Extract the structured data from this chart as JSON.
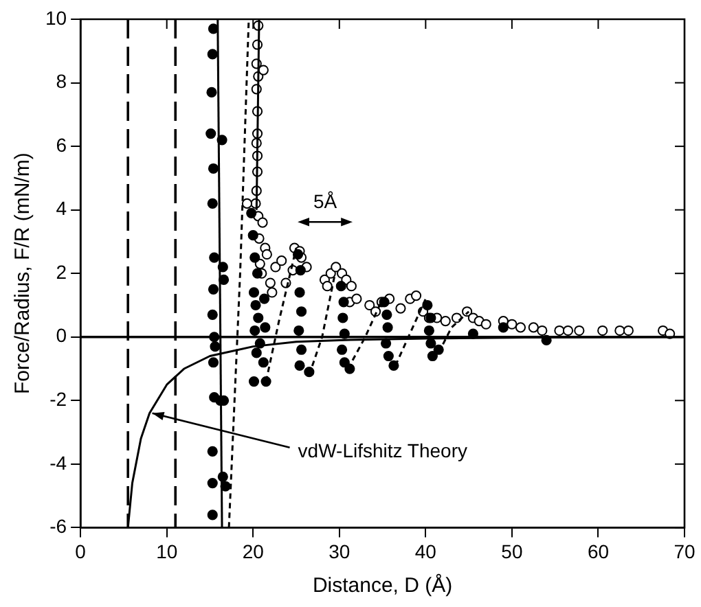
{
  "chart_data": {
    "type": "scatter",
    "xlabel": "Distance, D (Å)",
    "ylabel": "Force/Radius, F/R (mN/m)",
    "xlim": [
      0,
      70
    ],
    "xticks": [
      0,
      10,
      20,
      30,
      40,
      50,
      60,
      70
    ],
    "ylim": [
      -6,
      10
    ],
    "yticks": [
      -6,
      -4,
      -2,
      0,
      2,
      4,
      6,
      8,
      10
    ],
    "grid": false,
    "legend": false,
    "ref_lines": [
      {
        "axis": "x",
        "value": 5.5,
        "line_style": "dashed",
        "color": "#000000"
      },
      {
        "axis": "x",
        "value": 11,
        "line_style": "dashed",
        "color": "#000000"
      },
      {
        "axis": "y",
        "value": 0,
        "line_style": "solid",
        "color": "#000000"
      }
    ],
    "annotations": [
      {
        "text": "vdW-Lifshitz Theory",
        "x": 8,
        "y": -2.4
      },
      "5Å"
    ],
    "series": [
      {
        "type": "line",
        "color": "#000000",
        "line_style": "solid",
        "marker": "none",
        "x": [
          5.5,
          6,
          7,
          8,
          10,
          12,
          15,
          20,
          25,
          30,
          40,
          50,
          70
        ],
        "values": [
          -6,
          -4.6,
          -3.2,
          -2.4,
          -1.5,
          -1.0,
          -0.6,
          -0.3,
          -0.15,
          -0.1,
          -0.05,
          -0.02,
          0
        ]
      },
      {
        "type": "line",
        "color": "#000000",
        "line_style": "solid",
        "marker": "none",
        "x": [
          15.9,
          16.4
        ],
        "values": [
          10,
          -6
        ]
      },
      {
        "type": "line",
        "color": "#000000",
        "line_style": "solid",
        "marker": "none",
        "x": [
          20.7,
          20.4
        ],
        "values": [
          10,
          4
        ]
      },
      {
        "type": "line",
        "color": "#000000",
        "line_style": "dotted",
        "marker": "none",
        "x": [
          17.2,
          18.5,
          19.5,
          null,
          21.5,
          23,
          25,
          null,
          26.5,
          28,
          29.5,
          null,
          31,
          33,
          35,
          null,
          36.5,
          38.5,
          40,
          null,
          41.5,
          43,
          45
        ],
        "values": [
          -6,
          2,
          10,
          null,
          -1.4,
          0.5,
          2.8,
          null,
          -1.2,
          0,
          2,
          null,
          -1,
          0,
          1.2,
          null,
          -0.9,
          0.3,
          1.2,
          null,
          -0.5,
          0.3,
          0.8
        ]
      },
      {
        "type": "scatter",
        "color": "#000000",
        "marker": "circle",
        "x": [
          15.4,
          15.3,
          15.2,
          15.1,
          16.4,
          15.4,
          15.3,
          15.5,
          16.5,
          16.6,
          15.4,
          15.3,
          15.5,
          15.6,
          15.4,
          15.5,
          16.2,
          16.6,
          15.3,
          15.3,
          16.5,
          16.8,
          15.3,
          19.8,
          20,
          20.2,
          20.5,
          20.1,
          20.3,
          20.6,
          20.2,
          20.8,
          20.4,
          21.2,
          20.1,
          21.5,
          21.4,
          21.3,
          25.2,
          25.5,
          25.4,
          25.6,
          25.3,
          25.6,
          25.4,
          26.5,
          30.2,
          30.5,
          30.4,
          30.6,
          30.3,
          30.6,
          31.2,
          35.2,
          35.5,
          35.6,
          35.4,
          35.7,
          36.3,
          40.2,
          40.6,
          40.4,
          40.6,
          40.8,
          41.5,
          45.5,
          49,
          54
        ],
        "values": [
          9.7,
          8.9,
          7.7,
          6.4,
          6.2,
          5.3,
          4.2,
          2.5,
          2.2,
          1.8,
          1.5,
          0.7,
          0,
          -0.3,
          -0.8,
          -1.9,
          -2.0,
          -2.0,
          -3.6,
          -4.6,
          -4.4,
          -4.7,
          -5.6,
          3.9,
          3.2,
          2.5,
          2,
          1.4,
          1,
          0.6,
          0.2,
          -0.2,
          -0.5,
          -0.8,
          -1.4,
          -1.4,
          0.3,
          1.2,
          2.6,
          2.1,
          1.4,
          0.8,
          0.2,
          -0.4,
          -0.9,
          -1.1,
          1.6,
          1.1,
          0.6,
          0.1,
          -0.4,
          -0.8,
          -1.0,
          1.1,
          0.7,
          0.3,
          -0.2,
          -0.6,
          -0.9,
          1.0,
          0.6,
          0.2,
          -0.2,
          -0.6,
          -0.4,
          0.1,
          0.3,
          -0.1
        ]
      },
      {
        "type": "scatter",
        "color": "#ffffff",
        "marker": "circle",
        "x": [
          20.6,
          20.5,
          20.4,
          20.6,
          21.2,
          20.4,
          20.5,
          20.5,
          20.4,
          20.5,
          20.5,
          20.4,
          20.3,
          19.3,
          20.6,
          21.1,
          20.7,
          21.4,
          21.6,
          20.8,
          21.0,
          22.0,
          22.2,
          22.6,
          23.3,
          23.8,
          24.6,
          24.8,
          25.4,
          25.6,
          26.2,
          28.3,
          28.6,
          29.0,
          29.6,
          30.3,
          30.8,
          31.4,
          31.2,
          32.0,
          33.5,
          34.2,
          34.9,
          35.8,
          37.1,
          38.2,
          38.9,
          39.7,
          40.4,
          41.3,
          42.3,
          43.6,
          44.8,
          45.5,
          46.2,
          47.0,
          49.0,
          50.0,
          51.0,
          52.5,
          53.5,
          55.5,
          56.5,
          57.8,
          60.5,
          62.5,
          63.5,
          67.5,
          68.3
        ],
        "values": [
          9.8,
          9.2,
          8.6,
          8.2,
          8.4,
          7.8,
          7.1,
          6.4,
          6.1,
          5.7,
          5.2,
          4.6,
          4.2,
          4.2,
          3.8,
          3.6,
          3.1,
          2.8,
          2.6,
          2.3,
          2.0,
          1.7,
          1.4,
          2.2,
          2.4,
          1.7,
          2.1,
          2.8,
          2.7,
          2.5,
          2.2,
          1.8,
          1.6,
          2.0,
          2.2,
          2.0,
          1.8,
          1.6,
          1.1,
          1.2,
          1.0,
          0.8,
          1.1,
          1.2,
          0.9,
          1.2,
          1.3,
          0.8,
          0.6,
          0.6,
          0.5,
          0.6,
          0.8,
          0.6,
          0.5,
          0.4,
          0.5,
          0.4,
          0.3,
          0.3,
          0.2,
          0.2,
          0.2,
          0.2,
          0.2,
          0.2,
          0.2,
          0.2,
          0.1
        ]
      }
    ]
  }
}
